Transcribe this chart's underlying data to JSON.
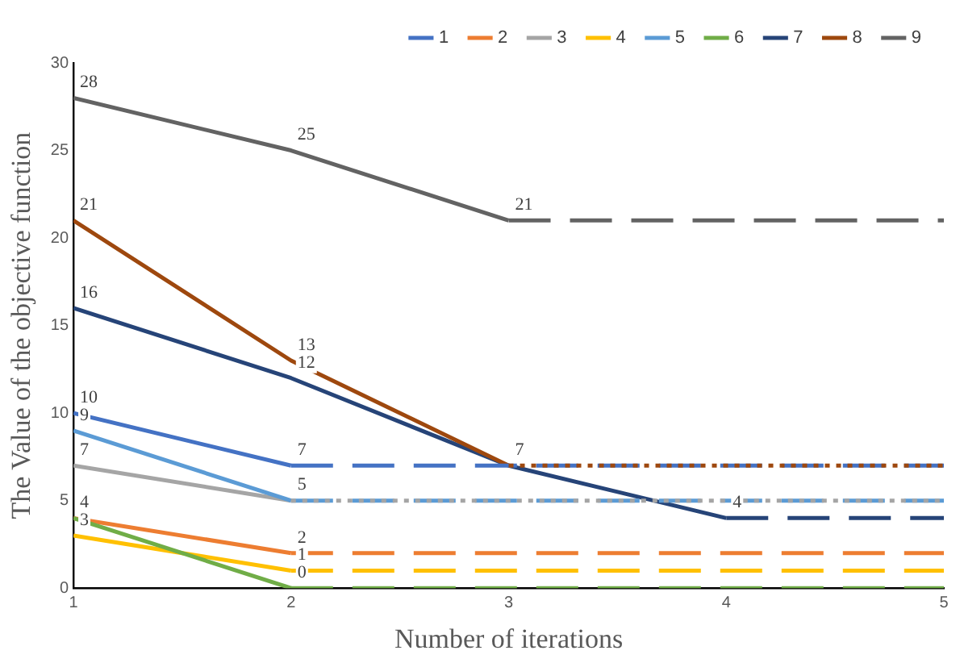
{
  "chart_data": {
    "type": "line",
    "xlabel": "Number of iterations",
    "ylabel": "The Value of the objective function",
    "xlim": [
      1,
      5
    ],
    "xticks": [
      1,
      2,
      3,
      4,
      5
    ],
    "ylim": [
      0,
      30
    ],
    "yticks": [
      0,
      5,
      10,
      15,
      20,
      25,
      30
    ],
    "grid": false,
    "legend": "top right",
    "marker": "none",
    "series": [
      {
        "name": "1",
        "color": "#4472c4",
        "x": [
          1,
          2
        ],
        "values": [
          10,
          7
        ],
        "value_labels": [
          "10",
          "7"
        ]
      },
      {
        "name": "2",
        "color": "#ed7d31",
        "x": [
          1,
          2
        ],
        "values": [
          4,
          2
        ],
        "value_labels": [
          "4",
          "2"
        ]
      },
      {
        "name": "3",
        "color": "#a5a5a5",
        "x": [
          1,
          2
        ],
        "values": [
          7,
          5
        ],
        "value_labels": [
          "7",
          null
        ]
      },
      {
        "name": "4",
        "color": "#ffc000",
        "x": [
          1,
          2
        ],
        "values": [
          3,
          1
        ],
        "value_labels": [
          "3",
          "1"
        ]
      },
      {
        "name": "5",
        "color": "#5b9bd5",
        "x": [
          1,
          2
        ],
        "values": [
          9,
          5
        ],
        "value_labels": [
          "9",
          "5"
        ]
      },
      {
        "name": "6",
        "color": "#70ad47",
        "x": [
          1,
          2
        ],
        "values": [
          4,
          0
        ],
        "value_labels": [
          null,
          "0"
        ]
      },
      {
        "name": "7",
        "color": "#264478",
        "x": [
          1,
          2,
          3,
          4
        ],
        "values": [
          16,
          12,
          7,
          4
        ],
        "value_labels": [
          "16",
          "12",
          null,
          "4"
        ]
      },
      {
        "name": "8",
        "color": "#9e480e",
        "x": [
          1,
          2,
          3
        ],
        "values": [
          21,
          13,
          7
        ],
        "value_labels": [
          "21",
          "13",
          "7"
        ]
      },
      {
        "name": "9",
        "color": "#636363",
        "x": [
          1,
          2,
          3
        ],
        "values": [
          28,
          25,
          21
        ],
        "value_labels": [
          "28",
          "25",
          "21"
        ]
      },
      {
        "color": "#4472c4",
        "x": [
          2,
          5
        ],
        "values": [
          7,
          7
        ],
        "line_style": "dashed"
      },
      {
        "color": "#ed7d31",
        "x": [
          2,
          5
        ],
        "values": [
          2,
          2
        ],
        "line_style": "dashed"
      },
      {
        "color": "#a5a5a5",
        "x": [
          2,
          5
        ],
        "values": [
          5,
          5
        ],
        "line_style": "dotted"
      },
      {
        "color": "#ffc000",
        "x": [
          2,
          5
        ],
        "values": [
          1,
          1
        ],
        "line_style": "dashed"
      },
      {
        "color": "#5b9bd5",
        "x": [
          2,
          5
        ],
        "values": [
          5,
          5
        ],
        "line_style": "dashed"
      },
      {
        "color": "#70ad47",
        "x": [
          2,
          5
        ],
        "values": [
          0,
          0
        ],
        "line_style": "dashed"
      },
      {
        "color": "#264478",
        "x": [
          4,
          5
        ],
        "values": [
          4,
          4
        ],
        "line_style": "dashed"
      },
      {
        "color": "#9e480e",
        "x": [
          3,
          5
        ],
        "values": [
          7,
          7
        ],
        "line_style": "dotted"
      },
      {
        "color": "#636363",
        "x": [
          3,
          5
        ],
        "values": [
          21,
          21
        ],
        "line_style": "dashed"
      }
    ]
  }
}
